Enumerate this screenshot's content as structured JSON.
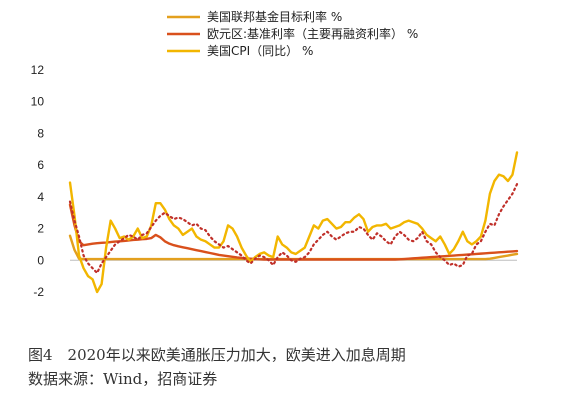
{
  "chart_data": {
    "type": "line",
    "ylim": [
      -2,
      12
    ],
    "yticks": [
      -2,
      0,
      2,
      4,
      6,
      8,
      10,
      12
    ],
    "tick_labels": [
      "-2",
      "0",
      "2",
      "4",
      "6",
      "8",
      "10",
      "12"
    ],
    "x_count": 100,
    "grid": false,
    "legend_placement": "top-center",
    "series": [
      {
        "name": "美国联邦基金目标利率 %",
        "color": "#E3A01E",
        "style": "solid",
        "values": [
          1.55,
          0.65,
          0.1,
          0.08,
          0.08,
          0.08,
          0.08,
          0.08,
          0.08,
          0.08,
          0.08,
          0.08,
          0.08,
          0.08,
          0.08,
          0.08,
          0.08,
          0.08,
          0.08,
          0.08,
          0.08,
          0.08,
          0.08,
          0.08,
          0.08,
          0.08,
          0.08,
          0.08,
          0.08,
          0.08,
          0.08,
          0.08,
          0.08,
          0.08,
          0.08,
          0.08,
          0.08,
          0.08,
          0.08,
          0.08,
          0.08,
          0.08,
          0.08,
          0.08,
          0.08,
          0.08,
          0.08,
          0.08,
          0.08,
          0.08,
          0.08,
          0.08,
          0.08,
          0.08,
          0.08,
          0.08,
          0.08,
          0.08,
          0.08,
          0.08,
          0.08,
          0.08,
          0.08,
          0.08,
          0.08,
          0.08,
          0.08,
          0.08,
          0.08,
          0.08,
          0.08,
          0.08,
          0.08,
          0.08,
          0.08,
          0.08,
          0.08,
          0.08,
          0.08,
          0.08,
          0.08,
          0.08,
          0.08,
          0.08,
          0.08,
          0.08,
          0.08,
          0.08,
          0.08,
          0.08,
          0.08,
          0.08,
          0.08,
          0.1,
          0.15,
          0.2,
          0.25,
          0.3,
          0.35,
          0.4
        ]
      },
      {
        "name": "欧元区:基准利率（主要再融资利率） %",
        "color": "#D9501C",
        "style": "solid",
        "values": [
          3.5,
          2.2,
          1.2,
          0.95,
          1.0,
          1.05,
          1.08,
          1.1,
          1.12,
          1.15,
          1.18,
          1.2,
          1.22,
          1.25,
          1.28,
          1.3,
          1.33,
          1.35,
          1.4,
          1.6,
          1.45,
          1.2,
          1.05,
          0.95,
          0.88,
          0.82,
          0.76,
          0.7,
          0.64,
          0.58,
          0.52,
          0.46,
          0.4,
          0.34,
          0.3,
          0.26,
          0.22,
          0.18,
          0.15,
          0.12,
          0.1,
          0.08,
          0.06,
          0.05,
          0.05,
          0.05,
          0.05,
          0.05,
          0.05,
          0.05,
          0.05,
          0.05,
          0.05,
          0.05,
          0.05,
          0.05,
          0.05,
          0.05,
          0.05,
          0.05,
          0.05,
          0.05,
          0.05,
          0.05,
          0.05,
          0.05,
          0.05,
          0.05,
          0.05,
          0.05,
          0.05,
          0.05,
          0.05,
          0.06,
          0.08,
          0.1,
          0.12,
          0.14,
          0.16,
          0.18,
          0.2,
          0.22,
          0.24,
          0.26,
          0.28,
          0.3,
          0.32,
          0.34,
          0.36,
          0.38,
          0.4,
          0.42,
          0.44,
          0.46,
          0.48,
          0.5,
          0.52,
          0.54,
          0.56,
          0.58
        ]
      },
      {
        "name": "美国CPI（同比） %",
        "color": "#F2B600",
        "style": "solid",
        "values": [
          4.9,
          2.8,
          0.3,
          -0.5,
          -1.0,
          -1.2,
          -2.0,
          -1.5,
          0.8,
          2.5,
          2.0,
          1.4,
          1.5,
          1.3,
          1.5,
          2.0,
          1.4,
          1.5,
          2.2,
          3.6,
          3.6,
          3.2,
          2.6,
          2.2,
          2.0,
          1.6,
          1.8,
          2.0,
          1.5,
          1.3,
          1.2,
          1.0,
          0.8,
          0.8,
          1.2,
          2.2,
          2.0,
          1.5,
          0.8,
          0.3,
          -0.1,
          0.2,
          0.4,
          0.5,
          0.3,
          0.2,
          1.5,
          1.0,
          0.8,
          0.5,
          0.4,
          0.6,
          0.8,
          1.5,
          2.2,
          2.0,
          2.5,
          2.6,
          2.3,
          2.0,
          2.1,
          2.4,
          2.4,
          2.7,
          2.9,
          2.6,
          1.8,
          2.1,
          2.2,
          2.2,
          2.3,
          2.0,
          2.1,
          2.2,
          2.4,
          2.5,
          2.4,
          2.3,
          2.0,
          1.6,
          1.4,
          1.2,
          1.5,
          1.0,
          0.4,
          0.7,
          1.2,
          1.8,
          1.2,
          1.0,
          1.2,
          1.5,
          2.5,
          4.2,
          5.0,
          5.4,
          5.3,
          5.0,
          5.4,
          6.8
        ]
      },
      {
        "name": "",
        "color": "#C0302A",
        "style": "dotted",
        "values": [
          3.7,
          2.5,
          1.5,
          0.3,
          -0.2,
          -0.5,
          -0.8,
          -0.2,
          0.2,
          0.6,
          1.0,
          1.2,
          1.4,
          1.6,
          1.5,
          1.3,
          1.6,
          1.7,
          2.1,
          2.5,
          2.8,
          3.0,
          2.8,
          2.6,
          2.7,
          2.6,
          2.4,
          2.2,
          2.3,
          2.0,
          1.9,
          1.5,
          1.2,
          1.0,
          0.8,
          0.9,
          0.7,
          0.5,
          0.3,
          0.0,
          -0.2,
          0.1,
          0.3,
          0.2,
          0.0,
          -0.3,
          0.2,
          0.5,
          0.3,
          0.0,
          -0.1,
          0.1,
          0.2,
          0.5,
          1.0,
          1.3,
          1.6,
          1.8,
          1.5,
          1.3,
          1.5,
          1.7,
          1.8,
          1.8,
          2.1,
          2.0,
          1.6,
          1.3,
          1.7,
          1.5,
          1.2,
          1.0,
          1.5,
          1.8,
          1.6,
          1.3,
          1.2,
          1.4,
          1.8,
          1.2,
          1.0,
          0.5,
          0.2,
          0.0,
          -0.3,
          -0.2,
          -0.4,
          -0.3,
          0.3,
          0.4,
          1.0,
          1.2,
          1.8,
          2.3,
          2.2,
          2.9,
          3.4,
          3.8,
          4.2,
          4.8
        ]
      }
    ]
  },
  "caption": {
    "line1": "图4　2020年以来欧美通胀压力加大，欧美进入加息周期",
    "line2": "数据来源：Wind，招商证券"
  }
}
